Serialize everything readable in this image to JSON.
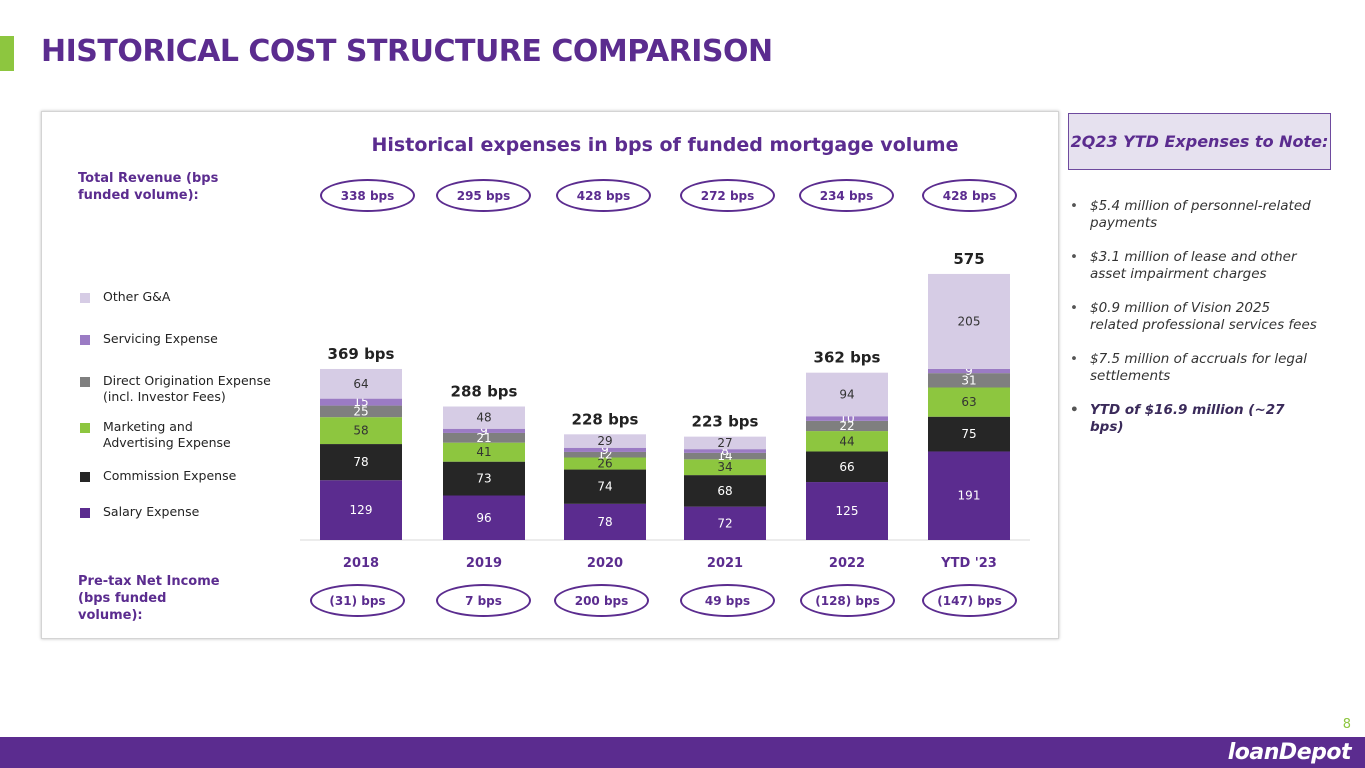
{
  "page": {
    "title": "HISTORICAL COST STRUCTURE COMPARISON",
    "page_number": "8",
    "logo_text": "loanDepot"
  },
  "chart": {
    "revenue_label": "Total Revenue (bps funded volume):",
    "income_label": "Pre-tax Net Income (bps funded volume):",
    "revenue_pills": [
      "338 bps",
      "295 bps",
      "428 bps",
      "272 bps",
      "234 bps",
      "428 bps"
    ],
    "income_pills": [
      "(31) bps",
      "7 bps",
      "200 bps",
      "49 bps",
      "(128) bps",
      "(147) bps"
    ]
  },
  "chart_data": {
    "type": "bar",
    "stacked": true,
    "title": "Historical expenses in bps of funded mortgage volume",
    "categories": [
      "2018",
      "2019",
      "2020",
      "2021",
      "2022",
      "YTD '23"
    ],
    "totals": [
      "369 bps",
      "288 bps",
      "228 bps",
      "223 bps",
      "362 bps",
      "575"
    ],
    "series": [
      {
        "name": "Salary Expense",
        "color": "#5b2c8f",
        "values": [
          129,
          96,
          78,
          72,
          125,
          191
        ]
      },
      {
        "name": "Commission Expense",
        "color": "#262626",
        "values": [
          78,
          73,
          74,
          68,
          66,
          75
        ]
      },
      {
        "name": "Marketing and Advertising Expense",
        "color": "#8dc63f",
        "values": [
          58,
          41,
          26,
          34,
          44,
          63
        ]
      },
      {
        "name": "Direct Origination Expense (incl. Investor Fees)",
        "color": "#7f7f7f",
        "values": [
          25,
          21,
          12,
          14,
          22,
          31
        ]
      },
      {
        "name": "Servicing Expense",
        "color": "#9b7bc4",
        "values": [
          15,
          9,
          9,
          8,
          10,
          9
        ]
      },
      {
        "name": "Other G&A",
        "color": "#d6cce5",
        "values": [
          64,
          48,
          29,
          27,
          94,
          205
        ]
      }
    ],
    "legend_order": [
      "Other G&A",
      "Servicing Expense",
      "Direct Origination Expense (incl. Investor Fees)",
      "Marketing and Advertising Expense",
      "Commission Expense",
      "Salary Expense"
    ],
    "grid": false,
    "legend_position": "left"
  },
  "notes": {
    "heading": "2Q23 YTD Expenses to Note:",
    "items": [
      "$5.4 million of personnel-related payments",
      "$3.1 million of lease and other asset impairment charges",
      "$0.9 million of Vision 2025 related professional services fees",
      "$7.5 million of accruals for legal settlements",
      "YTD of $16.9 million (~27 bps)"
    ]
  }
}
